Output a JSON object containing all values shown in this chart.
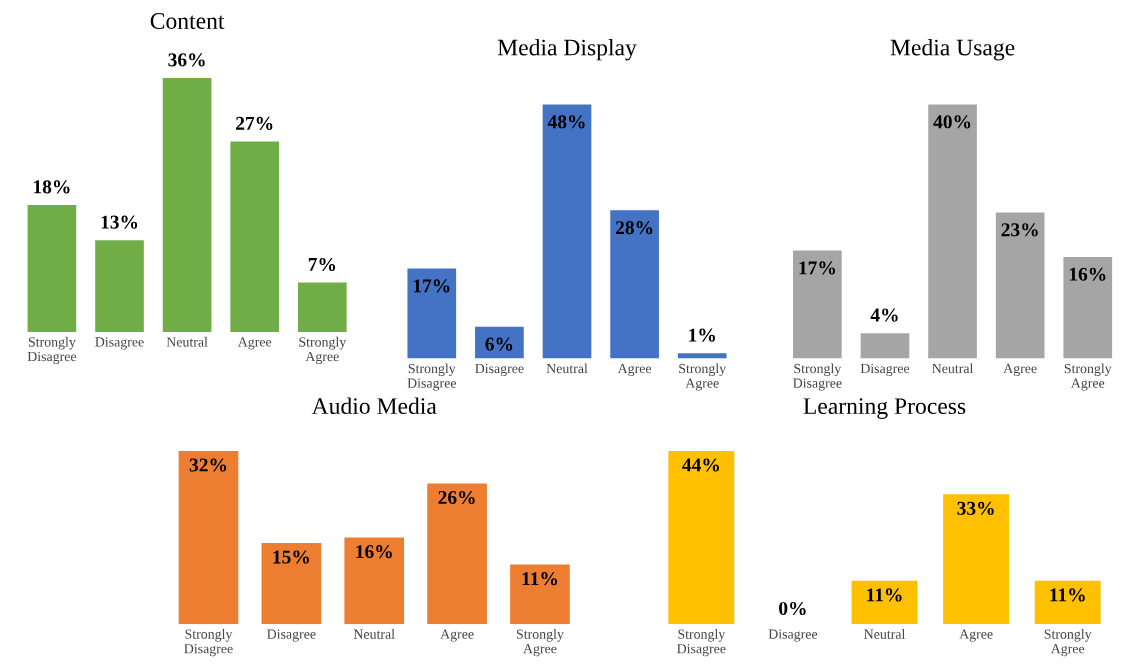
{
  "chart_data": [
    {
      "type": "bar",
      "title": "Content",
      "categories": [
        "Strongly\nDisagree",
        "Disagree",
        "Neutral",
        "Agree",
        "Strongly\nAgree"
      ],
      "values": [
        18,
        13,
        36,
        27,
        7
      ],
      "color": "#70ad47",
      "data_labels": true,
      "value_labels": [
        "18%",
        "13%",
        "36%",
        "27%",
        "7%"
      ],
      "grid": false,
      "legend": false
    },
    {
      "type": "bar",
      "title": "Media Display",
      "categories": [
        "Strongly\nDisagree",
        "Disagree",
        "Neutral",
        "Agree",
        "Strongly\nAgree"
      ],
      "values": [
        17,
        6,
        48,
        28,
        1
      ],
      "color": "#4472c4",
      "data_labels": true,
      "value_labels": [
        "17%",
        "6%",
        "48%",
        "28%",
        "1%"
      ],
      "grid": false,
      "legend": false
    },
    {
      "type": "bar",
      "title": "Media Usage",
      "categories": [
        "Strongly\nDisagree",
        "Disagree",
        "Neutral",
        "Agree",
        "Strongly\nAgree"
      ],
      "values": [
        17,
        4,
        40,
        23,
        16
      ],
      "color": "#a5a5a5",
      "data_labels": true,
      "value_labels": [
        "17%",
        "4%",
        "40%",
        "23%",
        "16%"
      ],
      "grid": false,
      "legend": false
    },
    {
      "type": "bar",
      "title": "Audio Media",
      "categories": [
        "Strongly\nDisagree",
        "Disagree",
        "Neutral",
        "Agree",
        "Strongly\nAgree"
      ],
      "values": [
        32,
        15,
        16,
        26,
        11
      ],
      "color": "#ed7d31",
      "data_labels": true,
      "value_labels": [
        "32%",
        "15%",
        "16%",
        "26%",
        "11%"
      ],
      "grid": false,
      "legend": false
    },
    {
      "type": "bar",
      "title": "Learning Process",
      "categories": [
        "Strongly\nDisagree",
        "Disagree",
        "Neutral",
        "Agree",
        "Strongly\nAgree"
      ],
      "values": [
        44,
        0,
        11,
        33,
        11
      ],
      "color": "#ffc000",
      "data_labels": true,
      "value_labels": [
        "44%",
        "0%",
        "11%",
        "33%",
        "11%"
      ],
      "grid": false,
      "legend": false
    }
  ]
}
